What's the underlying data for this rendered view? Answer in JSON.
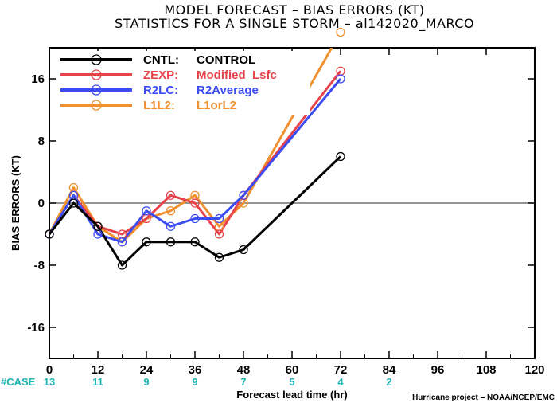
{
  "title_line1": "MODEL FORECAST – BIAS ERRORS (KT)",
  "title_line2": "STATISTICS FOR A SINGLE STORM – al142020_MARCO",
  "case_label": "#CASE",
  "credit": "Hurricane project – NOAA/NCEP/EMC",
  "chart_data": {
    "type": "line",
    "title": "MODEL FORECAST – BIAS ERRORS (KT)",
    "subtitle": "STATISTICS FOR A SINGLE STORM – al142020_MARCO",
    "xlabel": "Forecast lead time (hr)",
    "ylabel": "BIAS ERRORS (KT)",
    "xlim": [
      0,
      120
    ],
    "ylim": [
      -20,
      20
    ],
    "xticks": [
      0,
      12,
      24,
      36,
      48,
      60,
      72,
      84,
      96,
      108,
      120
    ],
    "yticks": [
      -16,
      -8,
      0,
      8,
      16
    ],
    "zero_line": true,
    "legend_position": "top-left",
    "case_counts": [
      {
        "x": 0,
        "n": "13"
      },
      {
        "x": 12,
        "n": "11"
      },
      {
        "x": 24,
        "n": "9"
      },
      {
        "x": 36,
        "n": "9"
      },
      {
        "x": 48,
        "n": "7"
      },
      {
        "x": 60,
        "n": "5"
      },
      {
        "x": 72,
        "n": "4"
      },
      {
        "x": 84,
        "n": "2"
      }
    ],
    "series": [
      {
        "name": "CNTL:",
        "desc": "CONTROL",
        "color": "#000000",
        "x": [
          0,
          6,
          12,
          18,
          24,
          30,
          36,
          42,
          48,
          72
        ],
        "y": [
          -4,
          0,
          -3,
          -8,
          -5,
          -5,
          -5,
          -7,
          -6,
          6
        ]
      },
      {
        "name": "ZEXP:",
        "desc": "Modified_Lsfc",
        "color": "#e8434a",
        "x": [
          0,
          6,
          12,
          18,
          24,
          30,
          36,
          42,
          48,
          72
        ],
        "y": [
          -4,
          1,
          -3,
          -4,
          -2,
          1,
          0,
          -4,
          1,
          17
        ]
      },
      {
        "name": "R2LC:",
        "desc": "R2Average",
        "color": "#3b4df2",
        "x": [
          0,
          6,
          12,
          18,
          24,
          30,
          36,
          42,
          48,
          72
        ],
        "y": [
          -4,
          1,
          -4,
          -5,
          -1,
          -3,
          -2,
          -2,
          1,
          16
        ]
      },
      {
        "name": "L1L2:",
        "desc": "L1orL2",
        "color": "#f0902e",
        "x": [
          0,
          6,
          12,
          18,
          24,
          30,
          36,
          42,
          48,
          72
        ],
        "y": [
          -4,
          2,
          -3,
          -5,
          -2,
          -1,
          1,
          -3,
          0,
          22
        ]
      }
    ]
  }
}
